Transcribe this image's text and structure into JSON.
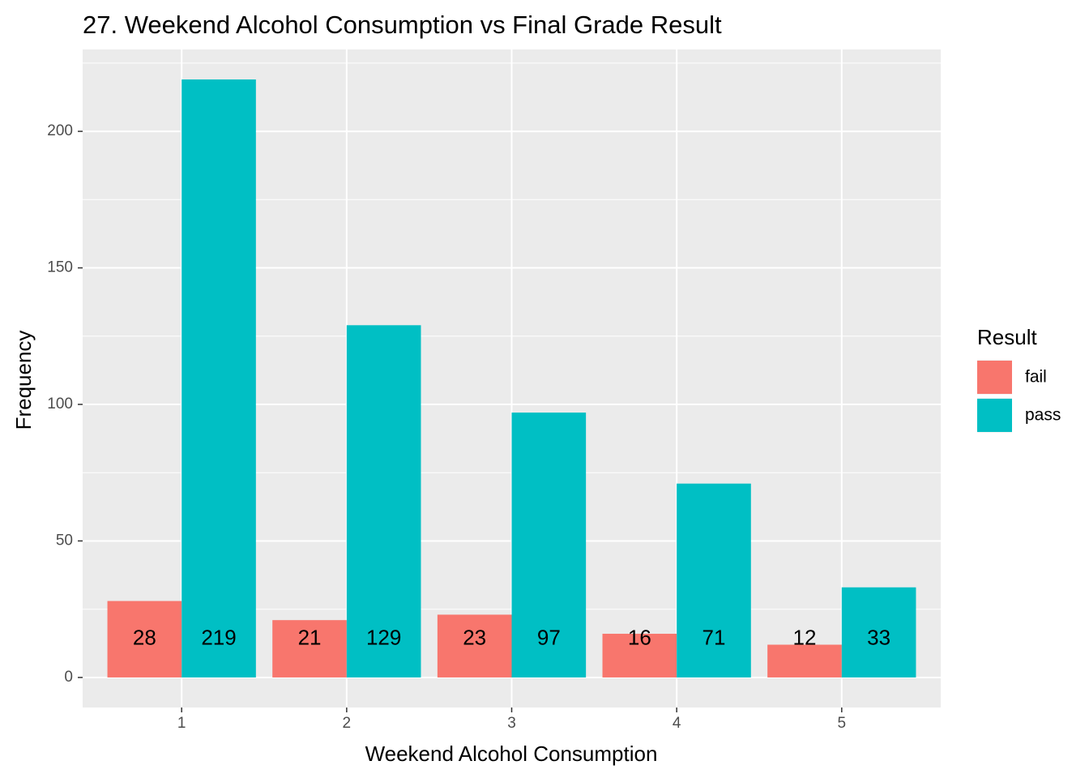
{
  "chart_data": {
    "type": "bar",
    "title": "27. Weekend Alcohol Consumption vs Final Grade Result",
    "xlabel": "Weekend Alcohol Consumption",
    "ylabel": "Frequency",
    "categories": [
      "1",
      "2",
      "3",
      "4",
      "5"
    ],
    "series": [
      {
        "name": "fail",
        "color": "#F8766D",
        "values": [
          28,
          21,
          23,
          16,
          12
        ]
      },
      {
        "name": "pass",
        "color": "#00BFC4",
        "values": [
          219,
          129,
          97,
          71,
          33
        ]
      }
    ],
    "ylim": [
      -11,
      230
    ],
    "yticks": [
      0,
      50,
      100,
      150,
      200
    ],
    "grid": true,
    "legend": {
      "title": "Result",
      "placement": "right"
    },
    "panel_background": "#EBEBEB"
  }
}
